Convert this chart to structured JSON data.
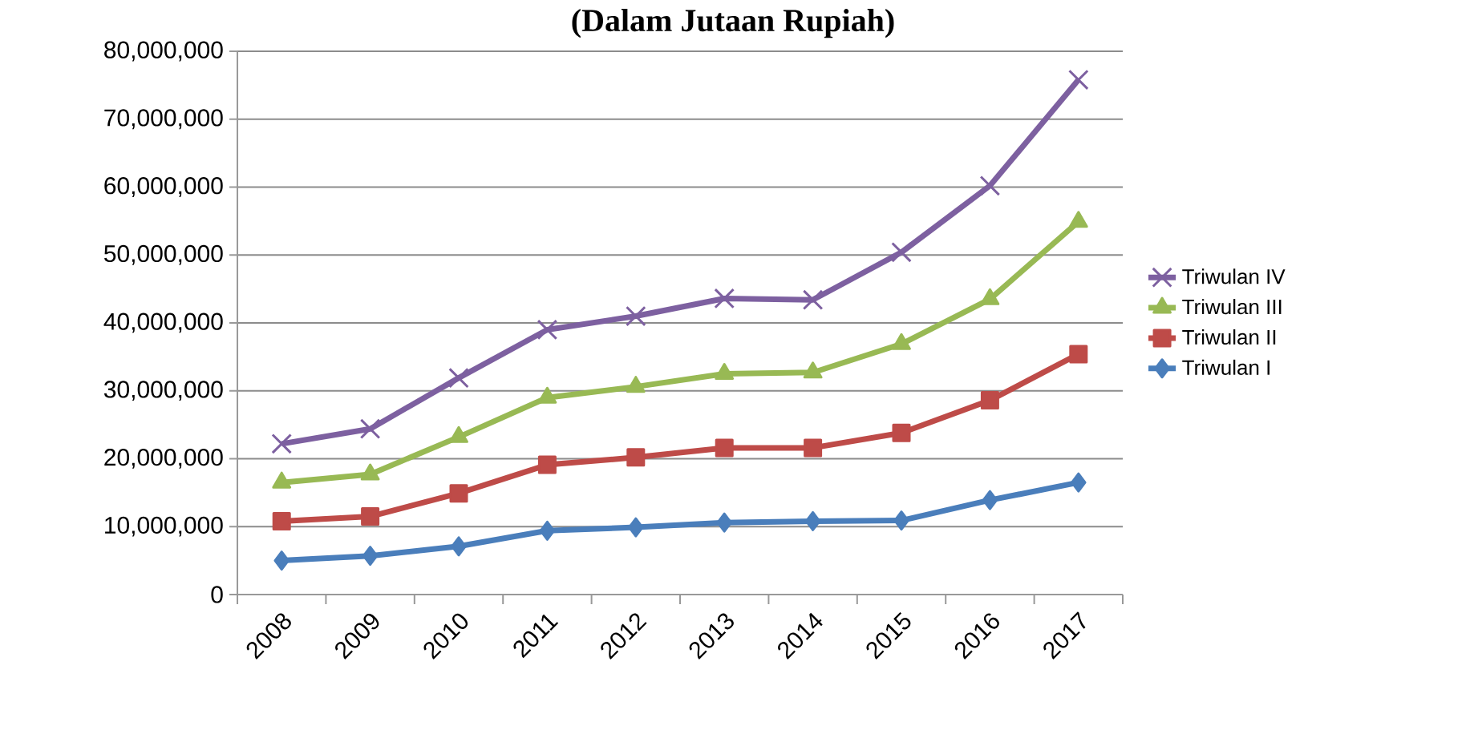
{
  "chart_data": {
    "type": "line",
    "title": "(Dalam Jutaan Rupiah)",
    "categories": [
      "2008",
      "2009",
      "2010",
      "2011",
      "2012",
      "2013",
      "2014",
      "2015",
      "2016",
      "2017"
    ],
    "series": [
      {
        "name": "Triwulan I",
        "color": "#4a7ebb",
        "marker": "diamond",
        "values": [
          5000000,
          5700000,
          7100000,
          9400000,
          9900000,
          10600000,
          10800000,
          10900000,
          13900000,
          16500000
        ]
      },
      {
        "name": "Triwulan II",
        "color": "#be4b48",
        "marker": "square",
        "values": [
          10800000,
          11500000,
          14900000,
          19100000,
          20200000,
          21600000,
          21600000,
          23800000,
          28600000,
          35400000
        ]
      },
      {
        "name": "Triwulan III",
        "color": "#98b954",
        "marker": "triangle",
        "values": [
          16500000,
          17700000,
          23200000,
          29000000,
          30600000,
          32500000,
          32700000,
          36900000,
          43500000,
          54900000
        ]
      },
      {
        "name": "Triwulan IV",
        "color": "#7d60a0",
        "marker": "cross",
        "values": [
          22200000,
          24400000,
          31900000,
          39000000,
          41000000,
          43600000,
          43400000,
          50400000,
          60200000,
          75800000
        ]
      }
    ],
    "ylim": [
      0,
      80000000
    ],
    "yticks": [
      0,
      {
        "value": 10000000,
        "label": "10,000,000"
      },
      {
        "value": 20000000,
        "label": "20,000,000"
      },
      {
        "value": 30000000,
        "label": "30,000,000"
      },
      {
        "value": 40000000,
        "label": "40,000,000"
      },
      {
        "value": 50000000,
        "label": "50,000,000"
      },
      {
        "value": 60000000,
        "label": "60,000,000"
      },
      {
        "value": 70000000,
        "label": "70,000,000"
      },
      {
        "value": 80000000,
        "label": "80,000,000"
      }
    ],
    "grid": "y",
    "legend": "right",
    "line_style": "solid"
  }
}
